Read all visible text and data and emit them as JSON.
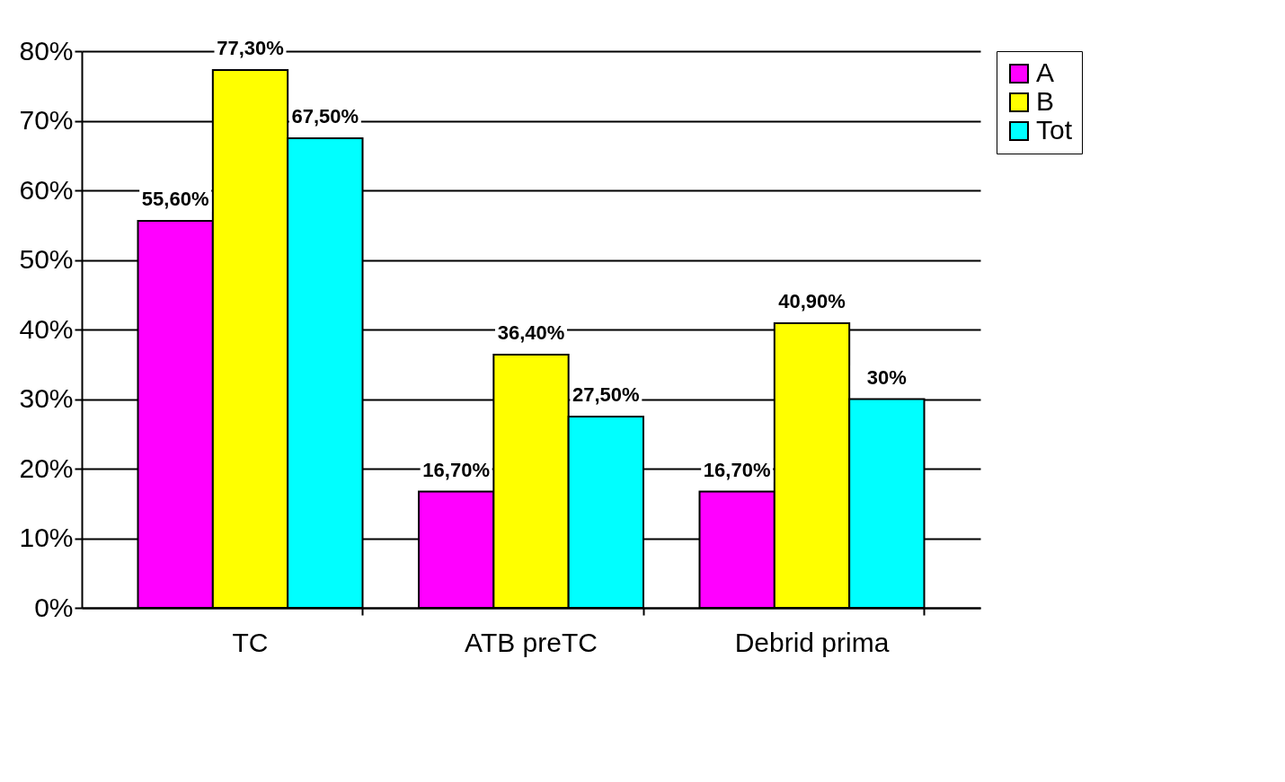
{
  "chart_data": {
    "type": "bar",
    "categories": [
      "TC",
      "ATB preTC",
      "Debrid prima"
    ],
    "series": [
      {
        "name": "A",
        "color": "#ff00ff",
        "values": [
          55.6,
          16.7,
          16.7
        ],
        "value_labels": [
          "55,60%",
          "16,70%",
          "16,70%"
        ]
      },
      {
        "name": "B",
        "color": "#ffff00",
        "values": [
          77.3,
          36.4,
          40.9
        ],
        "value_labels": [
          "77,30%",
          "36,40%",
          "40,90%"
        ]
      },
      {
        "name": "Tot",
        "color": "#00ffff",
        "values": [
          67.5,
          27.5,
          30
        ],
        "value_labels": [
          "67,50%",
          "27,50%",
          "30%"
        ]
      }
    ],
    "ylim": [
      0,
      80
    ],
    "yticks": [
      {
        "value": 0,
        "label": "0%"
      },
      {
        "value": 10,
        "label": "10%"
      },
      {
        "value": 20,
        "label": "20%"
      },
      {
        "value": 30,
        "label": "30%"
      },
      {
        "value": 40,
        "label": "40%"
      },
      {
        "value": 50,
        "label": "50%"
      },
      {
        "value": 60,
        "label": "60%"
      },
      {
        "value": 70,
        "label": "70%"
      },
      {
        "value": 80,
        "label": "80%"
      }
    ],
    "grid": "y",
    "legend": "right"
  }
}
